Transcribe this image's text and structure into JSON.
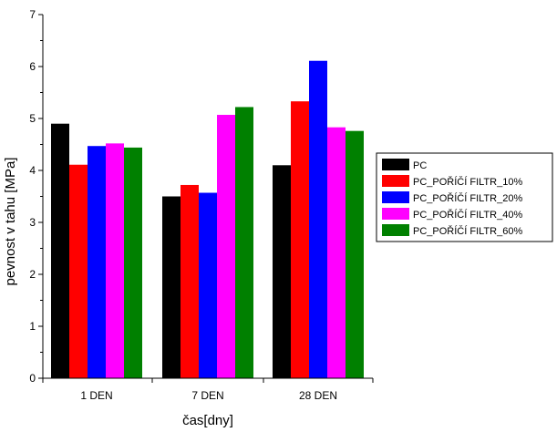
{
  "chart_data": {
    "type": "bar",
    "categories": [
      "1 DEN",
      "7 DEN",
      "28 DEN"
    ],
    "series": [
      {
        "name": "PC",
        "color": "#000000",
        "values": [
          4.9,
          3.5,
          4.1
        ]
      },
      {
        "name": "PC_POŘÍČÍ FILTR_10%",
        "color": "#ff0000",
        "values": [
          4.11,
          3.72,
          5.33
        ]
      },
      {
        "name": "PC_POŘÍČÍ FILTR_20%",
        "color": "#0000ff",
        "values": [
          4.47,
          3.57,
          6.11
        ]
      },
      {
        "name": "PC_POŘÍČÍ FILTR_40%",
        "color": "#ff00ff",
        "values": [
          4.52,
          5.07,
          4.83
        ]
      },
      {
        "name": "PC_POŘÍČÍ FILTR_60%",
        "color": "#008000",
        "values": [
          4.44,
          5.22,
          4.76
        ]
      }
    ],
    "xlabel": "čas[dny]",
    "ylabel": "pevnost v tahu [MPa]",
    "ylim": [
      0,
      7
    ],
    "yticks": [
      "0",
      "1",
      "2",
      "3",
      "4",
      "5",
      "6",
      "7"
    ],
    "grid": false,
    "legend": "right"
  }
}
